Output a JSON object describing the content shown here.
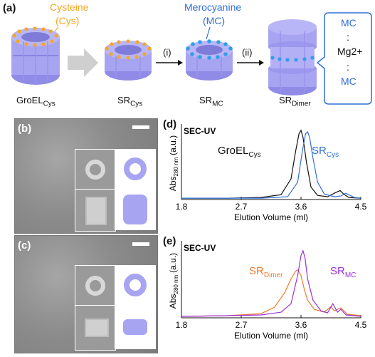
{
  "panel_a": {
    "label": "(a)",
    "cysteine_label": "Cysteine",
    "cys_label": "(Cys)",
    "merocyanine_label": "Merocyanine",
    "mc_label": "(MC)",
    "step1": "(i)",
    "step2": "(ii)",
    "stack": [
      "MC",
      ":",
      "Mg2+",
      ":",
      "MC"
    ],
    "names": {
      "groel": "GroEL",
      "groel_sub": "Cys",
      "sr": "SR",
      "sr_sub": "Cys",
      "srmc": "SR",
      "srmc_sub": "MC",
      "srdimer": "SR",
      "srdimer_sub": "Dimer"
    },
    "colors": {
      "orange": "#f5a623",
      "blue": "#2f6fd6",
      "protein": "#a7a4f2"
    }
  },
  "panel_b": {
    "label": "(b)"
  },
  "panel_c": {
    "label": "(c)"
  },
  "chart_data": [
    {
      "panel": "(d)",
      "type": "line",
      "title": "SEC-UV",
      "xlabel": "Elution Volume (ml)",
      "ylabel": "Abs",
      "ylabel_sub": "280 nm",
      "ylabel_unit": "(a.u.)",
      "xticks": [
        "1.8",
        "2.7",
        "3.6",
        "4.5"
      ],
      "xlim": [
        1.8,
        4.5
      ],
      "ylim": [
        0,
        1.05
      ],
      "series": [
        {
          "name": "GroEL",
          "name_sub": "Cys",
          "color": "#111111",
          "x": [
            1.8,
            2.5,
            3.0,
            3.3,
            3.45,
            3.52,
            3.57,
            3.6,
            3.63,
            3.68,
            3.75,
            3.85,
            4.0,
            4.12,
            4.19,
            4.24,
            4.32,
            4.5
          ],
          "y": [
            0.02,
            0.02,
            0.03,
            0.07,
            0.3,
            0.7,
            0.95,
            1.0,
            0.9,
            0.55,
            0.18,
            0.06,
            0.04,
            0.1,
            0.13,
            0.08,
            0.03,
            0.02
          ]
        },
        {
          "name": "SR",
          "name_sub": "Cys",
          "color": "#2f6fd6",
          "x": [
            1.8,
            2.5,
            3.0,
            3.4,
            3.55,
            3.62,
            3.67,
            3.7,
            3.73,
            3.78,
            3.85,
            3.95,
            4.1,
            4.2,
            4.27,
            4.32,
            4.4,
            4.5
          ],
          "y": [
            0.02,
            0.02,
            0.02,
            0.04,
            0.25,
            0.7,
            0.95,
            0.98,
            0.9,
            0.6,
            0.25,
            0.08,
            0.04,
            0.05,
            0.09,
            0.07,
            0.03,
            0.02
          ]
        }
      ]
    },
    {
      "panel": "(e)",
      "type": "line",
      "title": "SEC-UV",
      "xlabel": "Elution Volume (ml)",
      "ylabel": "Abs",
      "ylabel_sub": "280 nm",
      "ylabel_unit": "(a.u.)",
      "xticks": [
        "1.8",
        "2.7",
        "3.6",
        "4.5"
      ],
      "xlim": [
        1.8,
        4.5
      ],
      "ylim": [
        0,
        1.05
      ],
      "series": [
        {
          "name": "SR",
          "name_sub": "Dimer",
          "color": "#f07b2a",
          "x": [
            1.8,
            2.5,
            3.0,
            3.2,
            3.35,
            3.45,
            3.52,
            3.55,
            3.6,
            3.65,
            3.7,
            3.8,
            3.95,
            4.05,
            4.1,
            4.2,
            4.3,
            4.5
          ],
          "y": [
            0.02,
            0.03,
            0.06,
            0.15,
            0.35,
            0.55,
            0.66,
            0.68,
            0.6,
            0.4,
            0.25,
            0.12,
            0.08,
            0.16,
            0.1,
            0.14,
            0.05,
            0.03
          ]
        },
        {
          "name": "SR",
          "name_sub": "MC",
          "color": "#9b30d9",
          "x": [
            1.8,
            2.5,
            3.0,
            3.3,
            3.45,
            3.55,
            3.6,
            3.63,
            3.66,
            3.7,
            3.78,
            3.9,
            4.0,
            4.08,
            4.15,
            4.2,
            4.28,
            4.5
          ],
          "y": [
            0.02,
            0.03,
            0.04,
            0.08,
            0.2,
            0.6,
            0.88,
            0.95,
            0.85,
            0.55,
            0.25,
            0.1,
            0.07,
            0.2,
            0.08,
            0.12,
            0.04,
            0.02
          ]
        }
      ]
    }
  ]
}
